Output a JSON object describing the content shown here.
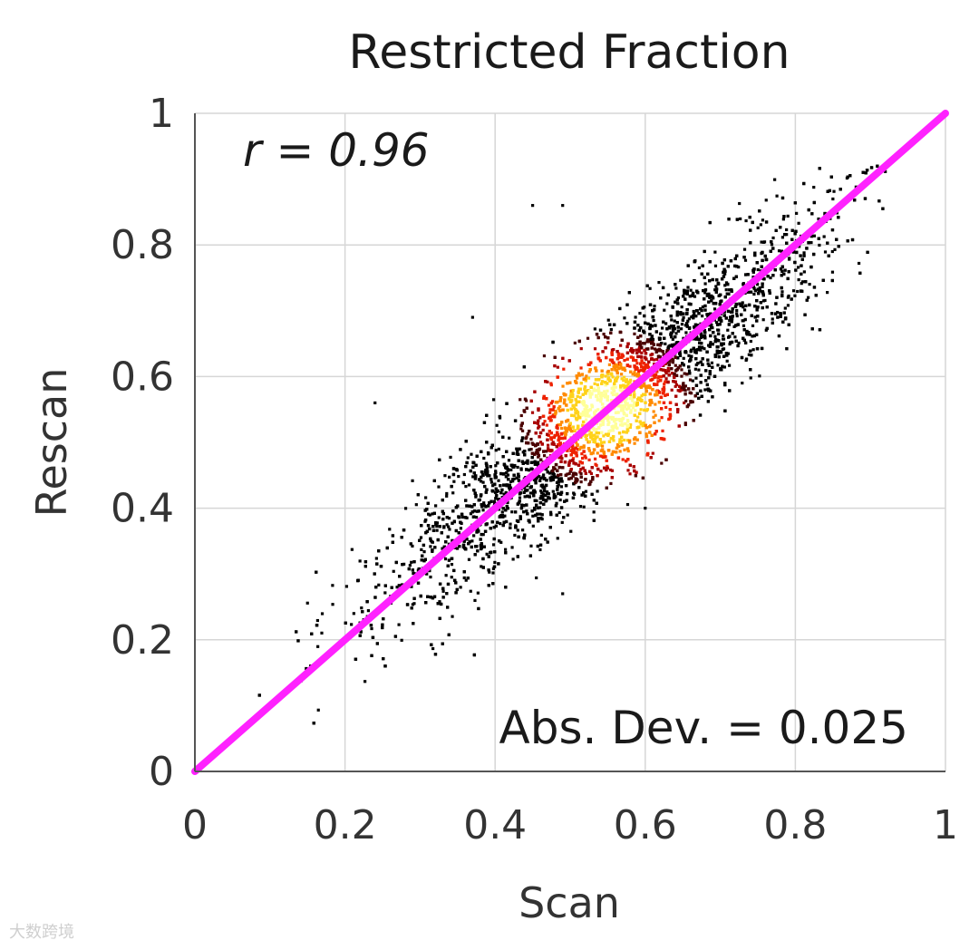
{
  "chart_data": {
    "type": "scatter",
    "title": "Restricted Fraction",
    "xlabel": "Scan",
    "ylabel": "Rescan",
    "xlim": [
      0,
      1
    ],
    "ylim": [
      0,
      1
    ],
    "xticks": [
      0,
      0.2,
      0.4,
      0.6,
      0.8,
      1
    ],
    "xtick_labels": [
      "0",
      "0.2",
      "0.4",
      "0.6",
      "0.8",
      "1"
    ],
    "yticks": [
      0,
      0.2,
      0.4,
      0.6,
      0.8,
      1
    ],
    "ytick_labels": [
      "0",
      "0.2",
      "0.4",
      "0.6",
      "0.8",
      "1"
    ],
    "grid": true,
    "colormap": "hot (black → red → yellow by point density)",
    "points_summary": {
      "distribution": "dense elongated cloud along identity line",
      "x_range": [
        0.08,
        0.92
      ],
      "densest_center": [
        0.55,
        0.55
      ],
      "outliers": [
        [
          0.45,
          0.86
        ],
        [
          0.49,
          0.86
        ],
        [
          0.37,
          0.69
        ],
        [
          0.24,
          0.56
        ],
        [
          0.6,
          0.4
        ],
        [
          0.49,
          0.27
        ]
      ]
    },
    "identity_line": {
      "from": [
        0,
        0
      ],
      "to": [
        1,
        1
      ],
      "color": "#ff22ff"
    },
    "annotations": {
      "correlation": "r = 0.96",
      "abs_dev": "Abs. Dev. = 0.025"
    }
  },
  "watermark": "大数跨境"
}
